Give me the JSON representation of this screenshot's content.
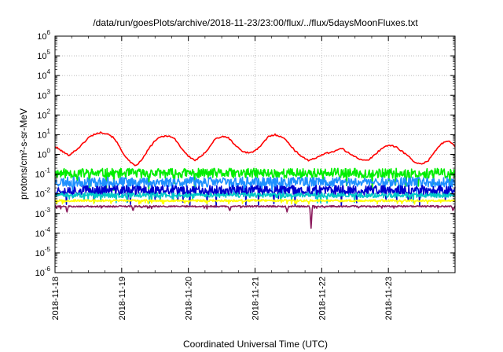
{
  "chart_data": {
    "type": "line",
    "title": "/data/run/goesPlots/archive/2018-11-23/23:00/flux/../flux/5daysMoonFluxes.txt",
    "xlabel": "Coordinated Universal Time (UTC)",
    "ylabel": "protons/cm²-s-sr-MeV",
    "yscale": "log",
    "ylim": [
      1e-06,
      1000000.0
    ],
    "xlim": [
      "2018-11-18",
      "2018-11-24"
    ],
    "x_ticks": [
      "2018-11-18",
      "2018-11-19",
      "2018-11-20",
      "2018-11-21",
      "2018-11-22",
      "2018-11-23"
    ],
    "y_ticks": [
      "10^-6",
      "10^-5",
      "10^-4",
      "10^-3",
      "10^-2",
      "10^-1",
      "10^0",
      "10^1",
      "10^2",
      "10^3",
      "10^4",
      "10^5",
      "10^6"
    ],
    "grid": true,
    "series": [
      {
        "color": "#ff0000",
        "x_days": [
          0.0,
          0.1,
          0.2,
          0.3,
          0.4,
          0.5,
          0.6,
          0.7,
          0.8,
          0.9,
          1.0,
          1.1,
          1.2,
          1.3,
          1.4,
          1.5,
          1.6,
          1.7,
          1.8,
          1.9,
          2.0,
          2.1,
          2.2,
          2.3,
          2.4,
          2.5,
          2.6,
          2.7,
          2.8,
          2.9,
          3.0,
          3.1,
          3.2,
          3.3,
          3.4,
          3.5,
          3.6,
          3.7,
          3.8,
          3.9,
          4.0,
          4.1,
          4.2,
          4.3,
          4.4,
          4.5,
          4.6,
          4.7,
          4.8,
          4.9,
          5.0,
          5.1,
          5.2,
          5.3,
          5.4,
          5.5,
          5.6,
          5.7,
          5.8,
          5.9,
          6.0
        ],
        "values": [
          2.5,
          1.5,
          0.9,
          1.5,
          3,
          7,
          11,
          13,
          11,
          6,
          1.5,
          0.5,
          0.25,
          0.5,
          1.8,
          5,
          8,
          9,
          6,
          2,
          0.8,
          0.5,
          0.8,
          2,
          6,
          8,
          7,
          3,
          1.5,
          1.2,
          1.5,
          3,
          8,
          10,
          8,
          4,
          1.5,
          0.8,
          0.5,
          0.6,
          1,
          1.2,
          1.5,
          2,
          1.2,
          0.8,
          0.5,
          0.5,
          1,
          2,
          3,
          2.5,
          1.5,
          0.8,
          0.4,
          0.3,
          0.5,
          1.5,
          3.5,
          5,
          2.5
        ]
      },
      {
        "color": "#00ee00",
        "level": 0.11,
        "noise": 0.25,
        "seed": 11
      },
      {
        "color": "#1e90ff",
        "level": 0.04,
        "noise": 0.25,
        "seed": 23
      },
      {
        "color": "#0000cd",
        "level": 0.015,
        "noise": 0.25,
        "seed": 37
      },
      {
        "color": "#00c8c8",
        "level": 0.0085,
        "noise": 0.12,
        "seed": 51
      },
      {
        "color": "#ffff00",
        "level": 0.0045,
        "noise": 0.05,
        "seed": 67
      },
      {
        "color": "#8b1a5c",
        "level": 0.0023,
        "noise": 0.04,
        "seed": 79,
        "dips": [
          {
            "x_days": 0.18,
            "value": 0.0012
          },
          {
            "x_days": 1.17,
            "value": 0.0013
          },
          {
            "x_days": 2.62,
            "value": 0.0013
          },
          {
            "x_days": 3.48,
            "value": 0.0012
          },
          {
            "x_days": 3.84,
            "value": 0.00018
          },
          {
            "x_days": 5.97,
            "value": 0.0013
          }
        ]
      }
    ]
  }
}
